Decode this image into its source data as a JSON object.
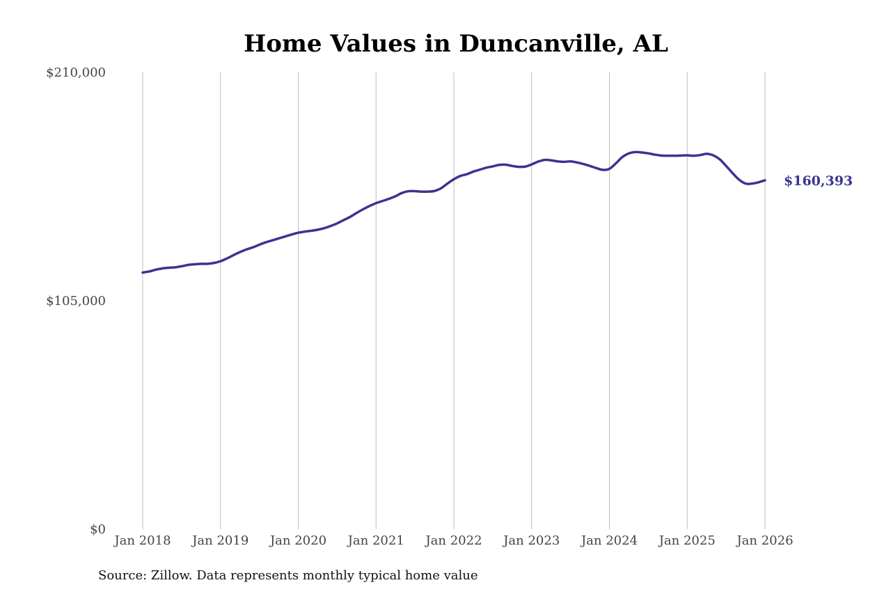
{
  "chart_data": {
    "type": "line",
    "title": "Home Values in Duncanville, AL",
    "xlabel": "",
    "ylabel": "",
    "source": "Source: Zillow. Data represents monthly typical home value",
    "ylim": [
      0,
      210000
    ],
    "yticks": [
      {
        "value": 0,
        "label": "$0"
      },
      {
        "value": 105000,
        "label": "$105,000"
      },
      {
        "value": 210000,
        "label": "$210,000"
      }
    ],
    "xticks": [
      {
        "x": "2018-01",
        "label": "Jan 2018"
      },
      {
        "x": "2019-01",
        "label": "Jan 2019"
      },
      {
        "x": "2020-01",
        "label": "Jan 2020"
      },
      {
        "x": "2021-01",
        "label": "Jan 2021"
      },
      {
        "x": "2022-01",
        "label": "Jan 2022"
      },
      {
        "x": "2023-01",
        "label": "Jan 2023"
      },
      {
        "x": "2024-01",
        "label": "Jan 2024"
      },
      {
        "x": "2025-01",
        "label": "Jan 2025"
      },
      {
        "x": "2026-01",
        "label": "Jan 2026"
      }
    ],
    "grid": {
      "vertical": true,
      "horizontal": false
    },
    "line_color": "#3a3490",
    "grid_color": "#bdbdbd",
    "end_label": "$160,393",
    "series": [
      {
        "points": [
          [
            "2018-01",
            118000
          ],
          [
            "2018-02",
            118500
          ],
          [
            "2018-03",
            119300
          ],
          [
            "2018-04",
            119900
          ],
          [
            "2018-05",
            120200
          ],
          [
            "2018-06",
            120400
          ],
          [
            "2018-07",
            120900
          ],
          [
            "2018-08",
            121500
          ],
          [
            "2018-09",
            121800
          ],
          [
            "2018-10",
            122000
          ],
          [
            "2018-11",
            122000
          ],
          [
            "2018-12",
            122400
          ],
          [
            "2019-01",
            123200
          ],
          [
            "2019-02",
            124500
          ],
          [
            "2019-03",
            126000
          ],
          [
            "2019-04",
            127400
          ],
          [
            "2019-05",
            128600
          ],
          [
            "2019-06",
            129600
          ],
          [
            "2019-07",
            130800
          ],
          [
            "2019-08",
            131900
          ],
          [
            "2019-09",
            132800
          ],
          [
            "2019-10",
            133700
          ],
          [
            "2019-11",
            134600
          ],
          [
            "2019-12",
            135500
          ],
          [
            "2020-01",
            136300
          ],
          [
            "2020-02",
            136800
          ],
          [
            "2020-03",
            137200
          ],
          [
            "2020-04",
            137700
          ],
          [
            "2020-05",
            138400
          ],
          [
            "2020-06",
            139400
          ],
          [
            "2020-07",
            140600
          ],
          [
            "2020-08",
            142100
          ],
          [
            "2020-09",
            143600
          ],
          [
            "2020-10",
            145400
          ],
          [
            "2020-11",
            147100
          ],
          [
            "2020-12",
            148600
          ],
          [
            "2021-01",
            149900
          ],
          [
            "2021-02",
            150900
          ],
          [
            "2021-03",
            151900
          ],
          [
            "2021-04",
            153100
          ],
          [
            "2021-05",
            154600
          ],
          [
            "2021-06",
            155400
          ],
          [
            "2021-07",
            155400
          ],
          [
            "2021-08",
            155200
          ],
          [
            "2021-09",
            155200
          ],
          [
            "2021-10",
            155500
          ],
          [
            "2021-11",
            156700
          ],
          [
            "2021-12",
            158900
          ],
          [
            "2022-01",
            160900
          ],
          [
            "2022-02",
            162400
          ],
          [
            "2022-03",
            163200
          ],
          [
            "2022-04",
            164400
          ],
          [
            "2022-05",
            165300
          ],
          [
            "2022-06",
            166200
          ],
          [
            "2022-07",
            166800
          ],
          [
            "2022-08",
            167500
          ],
          [
            "2022-09",
            167600
          ],
          [
            "2022-10",
            167000
          ],
          [
            "2022-11",
            166600
          ],
          [
            "2022-12",
            166700
          ],
          [
            "2023-01",
            167700
          ],
          [
            "2023-02",
            169000
          ],
          [
            "2023-03",
            169800
          ],
          [
            "2023-04",
            169600
          ],
          [
            "2023-05",
            169100
          ],
          [
            "2023-06",
            168900
          ],
          [
            "2023-07",
            169100
          ],
          [
            "2023-08",
            168600
          ],
          [
            "2023-09",
            167900
          ],
          [
            "2023-10",
            167000
          ],
          [
            "2023-11",
            166000
          ],
          [
            "2023-12",
            165200
          ],
          [
            "2024-01",
            165700
          ],
          [
            "2024-02",
            168200
          ],
          [
            "2024-03",
            171100
          ],
          [
            "2024-04",
            172800
          ],
          [
            "2024-05",
            173400
          ],
          [
            "2024-06",
            173200
          ],
          [
            "2024-07",
            172800
          ],
          [
            "2024-08",
            172200
          ],
          [
            "2024-09",
            171800
          ],
          [
            "2024-10",
            171700
          ],
          [
            "2024-11",
            171700
          ],
          [
            "2024-12",
            171800
          ],
          [
            "2025-01",
            171900
          ],
          [
            "2025-02",
            171700
          ],
          [
            "2025-03",
            172000
          ],
          [
            "2025-04",
            172600
          ],
          [
            "2025-05",
            171900
          ],
          [
            "2025-06",
            170100
          ],
          [
            "2025-07",
            167000
          ],
          [
            "2025-08",
            163700
          ],
          [
            "2025-09",
            160700
          ],
          [
            "2025-10",
            158900
          ],
          [
            "2025-11",
            158900
          ],
          [
            "2025-12",
            159500
          ],
          [
            "2026-01",
            160393
          ]
        ]
      }
    ]
  }
}
